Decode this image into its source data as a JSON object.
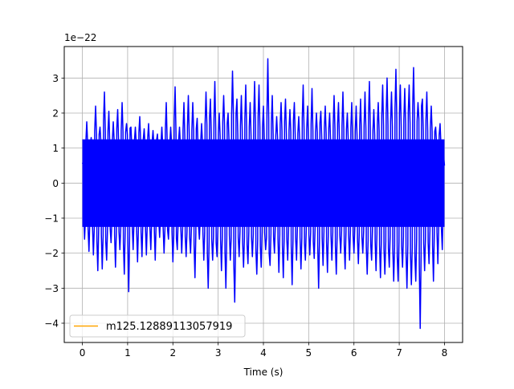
{
  "chart_data": {
    "type": "line",
    "title": "",
    "xlabel": "Time (s)",
    "ylabel": "",
    "y_offset_label": "1e−22",
    "xlim": [
      -0.4,
      8.4
    ],
    "ylim": [
      -4.55,
      3.9
    ],
    "x_ticks": [
      0,
      1,
      2,
      3,
      4,
      5,
      6,
      7,
      8
    ],
    "x_tick_labels": [
      "0",
      "1",
      "2",
      "3",
      "4",
      "5",
      "6",
      "7",
      "8"
    ],
    "y_ticks": [
      -4,
      -3,
      -2,
      -1,
      0,
      1,
      2,
      3
    ],
    "y_tick_labels": [
      "−4",
      "−3",
      "−2",
      "−1",
      "0",
      "1",
      "2",
      "3"
    ],
    "grid": true,
    "legend": {
      "placement": "lower-left",
      "entries": [
        {
          "label": "m125.12889113057919",
          "color": "#ffa500"
        }
      ]
    },
    "series": [
      {
        "label": "m125.12889113057919",
        "color": "#ffa500",
        "values": []
      },
      {
        "color": "#0000ff",
        "x_range": [
          0,
          8
        ],
        "values": [
          0.55,
          -1.6,
          1.75,
          -1.95,
          1.3,
          -2.05,
          2.2,
          -2.5,
          1.6,
          -2.45,
          2.6,
          -2.2,
          2.05,
          -1.7,
          1.75,
          -2.4,
          2.1,
          -1.9,
          2.3,
          -2.6,
          1.7,
          -3.1,
          1.6,
          -1.9,
          1.6,
          -2.25,
          1.9,
          -2.1,
          1.55,
          -2.05,
          1.7,
          -1.9,
          1.5,
          -2.2,
          1.4,
          -1.55,
          1.6,
          -2.0,
          2.3,
          -1.6,
          1.6,
          -2.25,
          2.75,
          -1.9,
          1.6,
          -2.0,
          2.3,
          -2.1,
          2.5,
          -2.0,
          2.3,
          -2.7,
          1.85,
          -1.6,
          1.7,
          -2.2,
          2.6,
          -3.0,
          2.4,
          -2.2,
          2.9,
          -2.1,
          2.0,
          -2.5,
          2.5,
          -3.0,
          2.0,
          -2.2,
          3.2,
          -3.4,
          2.4,
          -2.1,
          2.5,
          -2.4,
          2.8,
          -2.3,
          2.3,
          -2.1,
          2.9,
          -2.6,
          2.8,
          -2.4,
          2.2,
          -1.9,
          3.55,
          -2.35,
          2.5,
          -2.0,
          1.9,
          -2.55,
          2.3,
          -2.7,
          2.4,
          -2.2,
          2.1,
          -2.9,
          2.3,
          -2.2,
          1.9,
          -2.45,
          2.8,
          -2.2,
          2.2,
          -2.05,
          2.7,
          -2.15,
          2.0,
          -3.0,
          2.05,
          -2.35,
          2.2,
          -2.55,
          2.0,
          -2.2,
          2.5,
          -2.6,
          2.3,
          -2.0,
          2.6,
          -2.45,
          2.0,
          -2.2,
          2.3,
          -2.0,
          2.2,
          -2.3,
          2.4,
          -2.0,
          2.6,
          -2.6,
          2.9,
          -2.2,
          2.1,
          -2.5,
          2.3,
          -2.7,
          2.8,
          -2.6,
          3.0,
          -2.4,
          2.6,
          -2.8,
          3.25,
          -2.8,
          2.8,
          -2.4,
          2.7,
          -3.0,
          2.8,
          -2.9,
          3.3,
          -2.8,
          2.3,
          -4.15,
          2.4,
          -2.5,
          2.6,
          -2.3,
          2.2,
          -2.8,
          1.6,
          -2.3,
          1.7,
          -1.9,
          0.5
        ]
      }
    ]
  }
}
